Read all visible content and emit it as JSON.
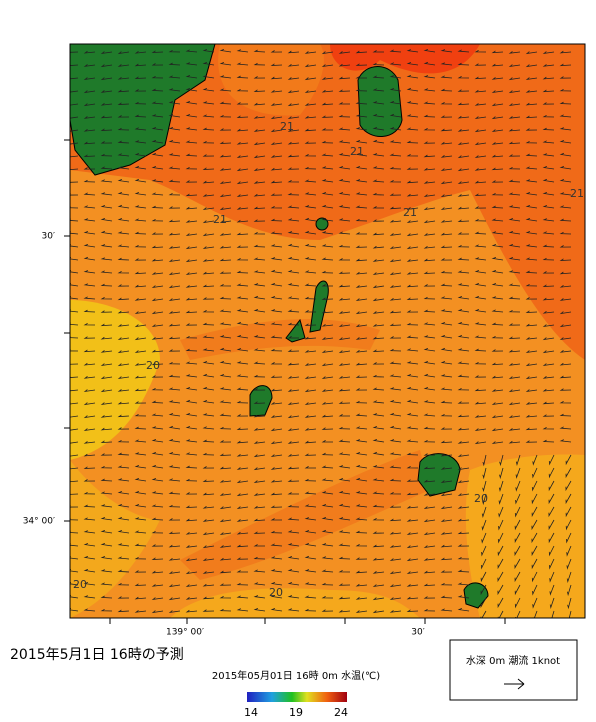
{
  "map": {
    "title": "2015年5月1日 16時の予測",
    "lat_labels": [
      "30′",
      "34° 00′"
    ],
    "lon_labels": [
      "139° 00′",
      "30′"
    ],
    "contour_labels": [
      21,
      21,
      21,
      21,
      21,
      20,
      20,
      20,
      20
    ],
    "colorbar": {
      "caption": "2015年05月01日 16時 0m 水温(℃)",
      "ticks": [
        14,
        19,
        24
      ]
    },
    "legend": {
      "text": "水深 0m 潮流 1knot"
    }
  }
}
